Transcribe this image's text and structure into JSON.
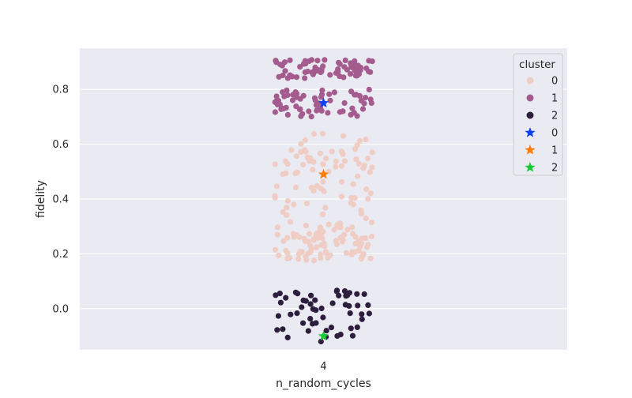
{
  "chart_data": {
    "type": "scatter",
    "subtype": "strip",
    "xlabel": "n_random_cycles",
    "ylabel": "fidelity",
    "categories": [
      "4"
    ],
    "ylim": [
      -0.15,
      0.95
    ],
    "yticks": [
      "0.0",
      "0.2",
      "0.4",
      "0.6",
      "0.8"
    ],
    "ytick_values": [
      0.0,
      0.2,
      0.4,
      0.6,
      0.8
    ],
    "grid": true,
    "style": {
      "background": "#eaeaf2",
      "grid_color": "#ffffff",
      "text_color": "#262626"
    },
    "legend": {
      "title": "cluster",
      "placement": "top-right",
      "entries": [
        {
          "label": "0",
          "marker": "circle",
          "color": "#f0cdc4"
        },
        {
          "label": "1",
          "marker": "circle",
          "color": "#a45b8d"
        },
        {
          "label": "2",
          "marker": "circle",
          "color": "#2d1e3e"
        },
        {
          "label": "0",
          "marker": "star",
          "color": "#0f3ff5"
        },
        {
          "label": "1",
          "marker": "star",
          "color": "#ff7c00"
        },
        {
          "label": "2",
          "marker": "star",
          "color": "#1ac938"
        }
      ]
    },
    "series": [
      {
        "name": "0",
        "marker": "circle",
        "color": "#f0cdc4",
        "n_points": 170,
        "y_ranges": [
          [
            0.17,
            0.3
          ],
          [
            0.3,
            0.64
          ]
        ],
        "y_center": 0.44
      },
      {
        "name": "1",
        "marker": "circle",
        "color": "#a45b8d",
        "n_points": 130,
        "y_ranges": [
          [
            0.7,
            0.8
          ],
          [
            0.84,
            0.91
          ]
        ],
        "y_center": 0.82
      },
      {
        "name": "2",
        "marker": "circle",
        "color": "#2d1e3e",
        "n_points": 55,
        "y_ranges": [
          [
            -0.12,
            0.07
          ]
        ],
        "y_center": -0.01
      }
    ],
    "centroids": [
      {
        "cluster": "0",
        "x": "4",
        "y": 0.75,
        "marker": "star",
        "color": "#0f3ff5"
      },
      {
        "cluster": "1",
        "x": "4",
        "y": 0.49,
        "marker": "star",
        "color": "#ff7c00"
      },
      {
        "cluster": "2",
        "x": "4",
        "y": -0.1,
        "marker": "star",
        "color": "#1ac938"
      }
    ]
  }
}
